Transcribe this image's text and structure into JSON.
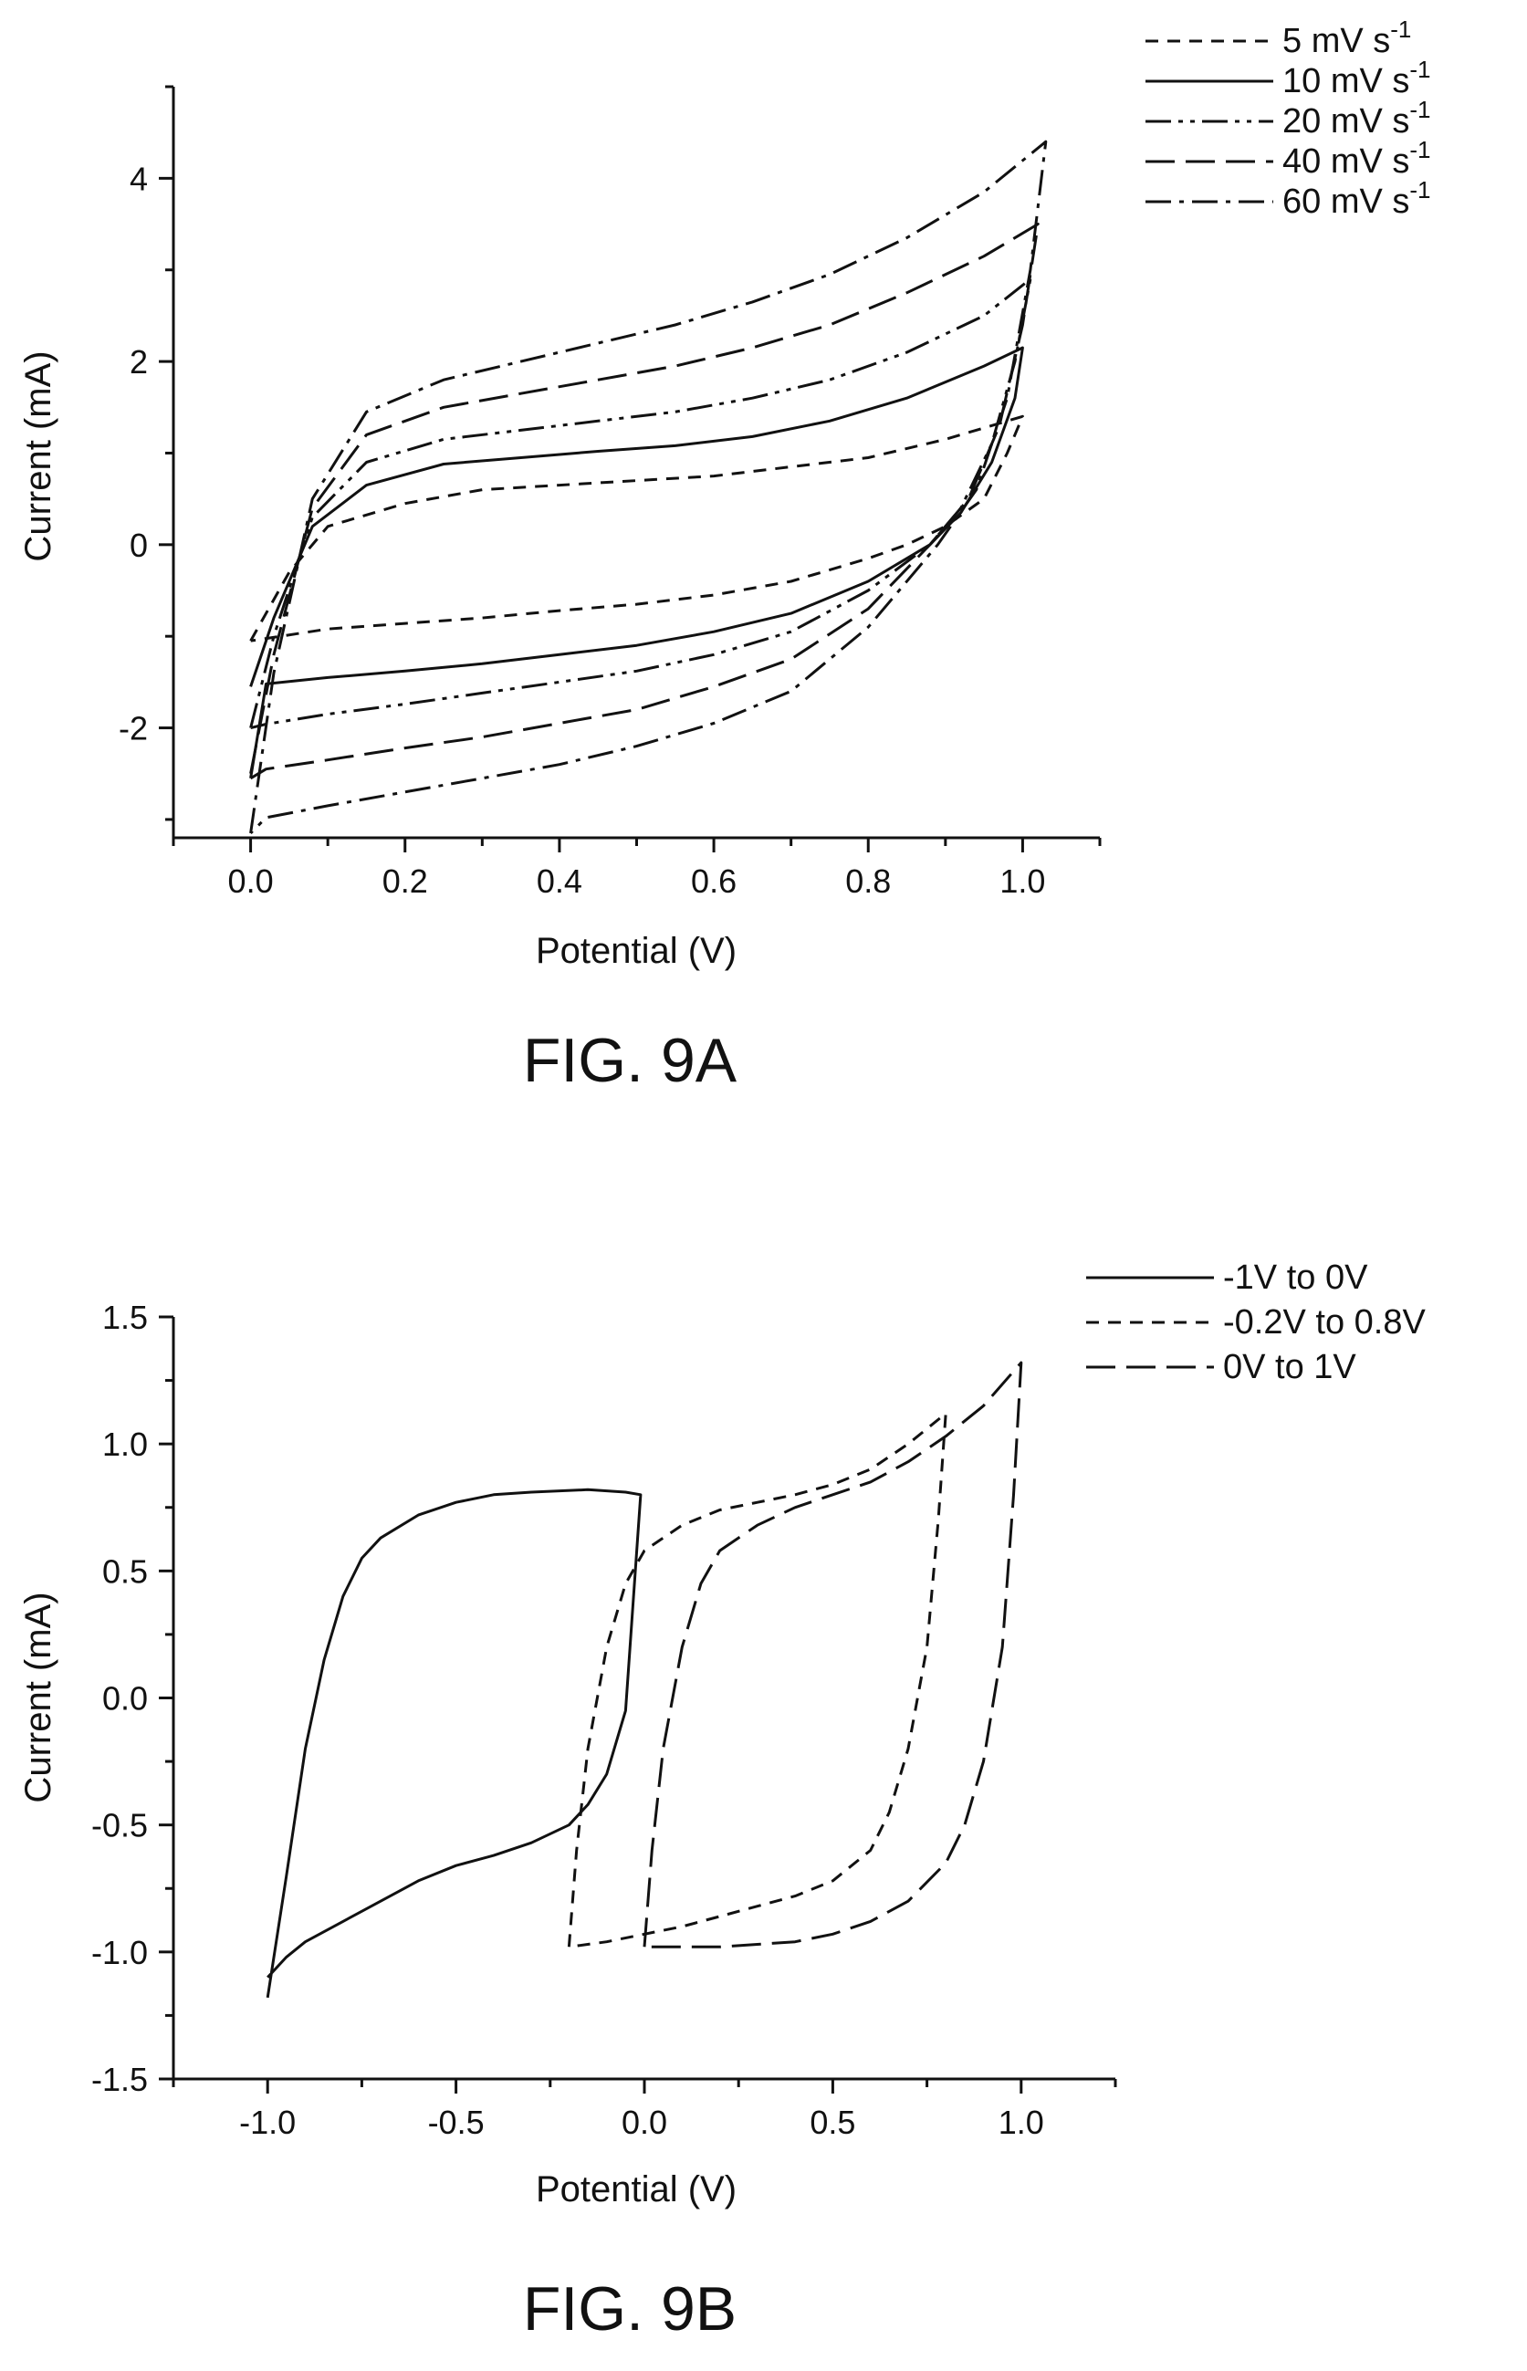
{
  "chart_data": [
    {
      "type": "line",
      "title": "FIG. 9A",
      "xlabel": "Potential (V)",
      "ylabel": "Current (mA)",
      "xlim": [
        -0.1,
        1.1
      ],
      "ylim": [
        -3.2,
        5.0
      ],
      "xticks": [
        0.0,
        0.2,
        0.4,
        0.6,
        0.8,
        1.0
      ],
      "xtick_labels": [
        "0.0",
        "0.2",
        "0.4",
        "0.6",
        "0.8",
        "1.0"
      ],
      "yticks": [
        -2,
        0,
        2,
        4
      ],
      "ytick_labels": [
        "-2",
        "0",
        "2",
        "4"
      ],
      "grid": false,
      "legend_position": "top-right",
      "series": [
        {
          "name": "5 mV s",
          "name_sup": "-1",
          "dash": "short-dash",
          "x": [
            0.0,
            0.05,
            0.1,
            0.2,
            0.3,
            0.4,
            0.5,
            0.6,
            0.7,
            0.8,
            0.9,
            1.0,
            0.98,
            0.95,
            0.9,
            0.85,
            0.8,
            0.7,
            0.6,
            0.5,
            0.4,
            0.3,
            0.2,
            0.1,
            0.0
          ],
          "y": [
            -1.05,
            -0.3,
            0.2,
            0.45,
            0.6,
            0.65,
            0.7,
            0.75,
            0.85,
            0.95,
            1.15,
            1.4,
            1.0,
            0.5,
            0.2,
            0.0,
            -0.15,
            -0.4,
            -0.55,
            -0.65,
            -0.72,
            -0.8,
            -0.86,
            -0.92,
            -1.05
          ]
        },
        {
          "name": "10 mV s",
          "name_sup": "-1",
          "dash": "solid",
          "x": [
            0.0,
            0.03,
            0.08,
            0.15,
            0.25,
            0.35,
            0.45,
            0.55,
            0.65,
            0.75,
            0.85,
            0.95,
            1.0,
            0.99,
            0.96,
            0.92,
            0.88,
            0.8,
            0.7,
            0.6,
            0.5,
            0.4,
            0.3,
            0.2,
            0.1,
            0.02,
            0.0
          ],
          "y": [
            -1.55,
            -0.8,
            0.2,
            0.65,
            0.88,
            0.95,
            1.02,
            1.08,
            1.18,
            1.35,
            1.6,
            1.95,
            2.15,
            1.6,
            0.9,
            0.35,
            0.0,
            -0.4,
            -0.75,
            -0.95,
            -1.1,
            -1.2,
            -1.3,
            -1.38,
            -1.45,
            -1.52,
            -2.55
          ]
        },
        {
          "name": "20 mV s",
          "name_sup": "-1",
          "dash": "dash-dot-dot",
          "x": [
            0.0,
            0.03,
            0.08,
            0.15,
            0.25,
            0.35,
            0.45,
            0.55,
            0.65,
            0.75,
            0.85,
            0.95,
            1.01,
            0.99,
            0.96,
            0.92,
            0.88,
            0.8,
            0.7,
            0.6,
            0.5,
            0.4,
            0.3,
            0.2,
            0.1,
            0.02,
            0.0
          ],
          "y": [
            -2.0,
            -1.0,
            0.3,
            0.9,
            1.15,
            1.25,
            1.35,
            1.45,
            1.6,
            1.8,
            2.1,
            2.5,
            2.9,
            2.0,
            1.1,
            0.4,
            0.0,
            -0.5,
            -0.95,
            -1.2,
            -1.38,
            -1.5,
            -1.62,
            -1.74,
            -1.85,
            -1.96,
            -2.0
          ]
        },
        {
          "name": "40 mV s",
          "name_sup": "-1",
          "dash": "long-dash",
          "x": [
            0.0,
            0.03,
            0.08,
            0.15,
            0.25,
            0.35,
            0.45,
            0.55,
            0.65,
            0.75,
            0.85,
            0.95,
            1.02,
            1.0,
            0.97,
            0.93,
            0.88,
            0.8,
            0.7,
            0.6,
            0.5,
            0.4,
            0.3,
            0.2,
            0.1,
            0.02,
            0.0
          ],
          "y": [
            -2.5,
            -1.2,
            0.4,
            1.2,
            1.5,
            1.65,
            1.8,
            1.95,
            2.15,
            2.4,
            2.75,
            3.15,
            3.5,
            2.4,
            1.3,
            0.5,
            0.0,
            -0.7,
            -1.25,
            -1.55,
            -1.8,
            -1.95,
            -2.1,
            -2.22,
            -2.35,
            -2.45,
            -2.55
          ]
        },
        {
          "name": "60 mV s",
          "name_sup": "-1",
          "dash": "dash-dot",
          "x": [
            0.0,
            0.03,
            0.08,
            0.15,
            0.25,
            0.35,
            0.45,
            0.55,
            0.65,
            0.75,
            0.85,
            0.95,
            1.03,
            1.01,
            0.98,
            0.94,
            0.89,
            0.8,
            0.7,
            0.6,
            0.5,
            0.4,
            0.3,
            0.2,
            0.1,
            0.02,
            0.0
          ],
          "y": [
            -3.15,
            -1.4,
            0.5,
            1.45,
            1.8,
            2.0,
            2.2,
            2.4,
            2.65,
            2.95,
            3.35,
            3.85,
            4.4,
            3.0,
            1.6,
            0.6,
            0.0,
            -0.9,
            -1.6,
            -1.95,
            -2.2,
            -2.4,
            -2.55,
            -2.7,
            -2.85,
            -2.98,
            -3.15
          ]
        }
      ]
    },
    {
      "type": "line",
      "title": "FIG. 9B",
      "xlabel": "Potential (V)",
      "ylabel": "Current (mA)",
      "xlim": [
        -1.25,
        1.25
      ],
      "ylim": [
        -1.5,
        1.5
      ],
      "xticks": [
        -1.0,
        -0.5,
        0.0,
        0.5,
        1.0
      ],
      "xtick_labels": [
        "-1.0",
        "-0.5",
        "0.0",
        "0.5",
        "1.0"
      ],
      "yticks": [
        -1.5,
        -1.0,
        -0.5,
        0.0,
        0.5,
        1.0,
        1.5
      ],
      "ytick_labels": [
        "-1.5",
        "-1.0",
        "-0.5",
        "0.0",
        "0.5",
        "1.0",
        "1.5"
      ],
      "grid": false,
      "legend_position": "top-right",
      "series": [
        {
          "name": "-1V to 0V",
          "dash": "solid",
          "x": [
            -1.0,
            -0.95,
            -0.9,
            -0.85,
            -0.8,
            -0.75,
            -0.7,
            -0.6,
            -0.5,
            -0.4,
            -0.3,
            -0.15,
            -0.05,
            -0.01,
            -0.05,
            -0.1,
            -0.15,
            -0.2,
            -0.3,
            -0.4,
            -0.5,
            -0.6,
            -0.7,
            -0.8,
            -0.9,
            -0.95,
            -1.0
          ],
          "y": [
            -1.18,
            -0.7,
            -0.2,
            0.15,
            0.4,
            0.55,
            0.63,
            0.72,
            0.77,
            0.8,
            0.81,
            0.82,
            0.81,
            0.8,
            -0.05,
            -0.3,
            -0.42,
            -0.5,
            -0.57,
            -0.62,
            -0.66,
            -0.72,
            -0.8,
            -0.88,
            -0.96,
            -1.02,
            -1.1
          ]
        },
        {
          "name": "-0.2V to 0.8V",
          "dash": "short-dash",
          "x": [
            -0.2,
            -0.18,
            -0.15,
            -0.1,
            -0.05,
            0.0,
            0.1,
            0.2,
            0.3,
            0.4,
            0.5,
            0.6,
            0.7,
            0.8,
            0.78,
            0.75,
            0.7,
            0.65,
            0.6,
            0.5,
            0.4,
            0.3,
            0.2,
            0.1,
            0.0,
            -0.1,
            -0.2
          ],
          "y": [
            -0.98,
            -0.6,
            -0.2,
            0.2,
            0.45,
            0.58,
            0.68,
            0.74,
            0.77,
            0.8,
            0.84,
            0.9,
            1.0,
            1.12,
            0.7,
            0.2,
            -0.2,
            -0.45,
            -0.6,
            -0.72,
            -0.78,
            -0.82,
            -0.86,
            -0.9,
            -0.93,
            -0.96,
            -0.98
          ]
        },
        {
          "name": "0V to 1V",
          "dash": "long-dash",
          "x": [
            0.0,
            0.02,
            0.05,
            0.1,
            0.15,
            0.2,
            0.3,
            0.4,
            0.5,
            0.6,
            0.7,
            0.8,
            0.9,
            1.0,
            0.98,
            0.95,
            0.9,
            0.85,
            0.8,
            0.7,
            0.6,
            0.5,
            0.4,
            0.3,
            0.2,
            0.1,
            0.0
          ],
          "y": [
            -0.98,
            -0.6,
            -0.2,
            0.2,
            0.45,
            0.58,
            0.68,
            0.75,
            0.8,
            0.85,
            0.93,
            1.03,
            1.15,
            1.32,
            0.8,
            0.2,
            -0.25,
            -0.5,
            -0.65,
            -0.8,
            -0.88,
            -0.93,
            -0.96,
            -0.97,
            -0.98,
            -0.98,
            -0.98
          ]
        }
      ]
    }
  ]
}
